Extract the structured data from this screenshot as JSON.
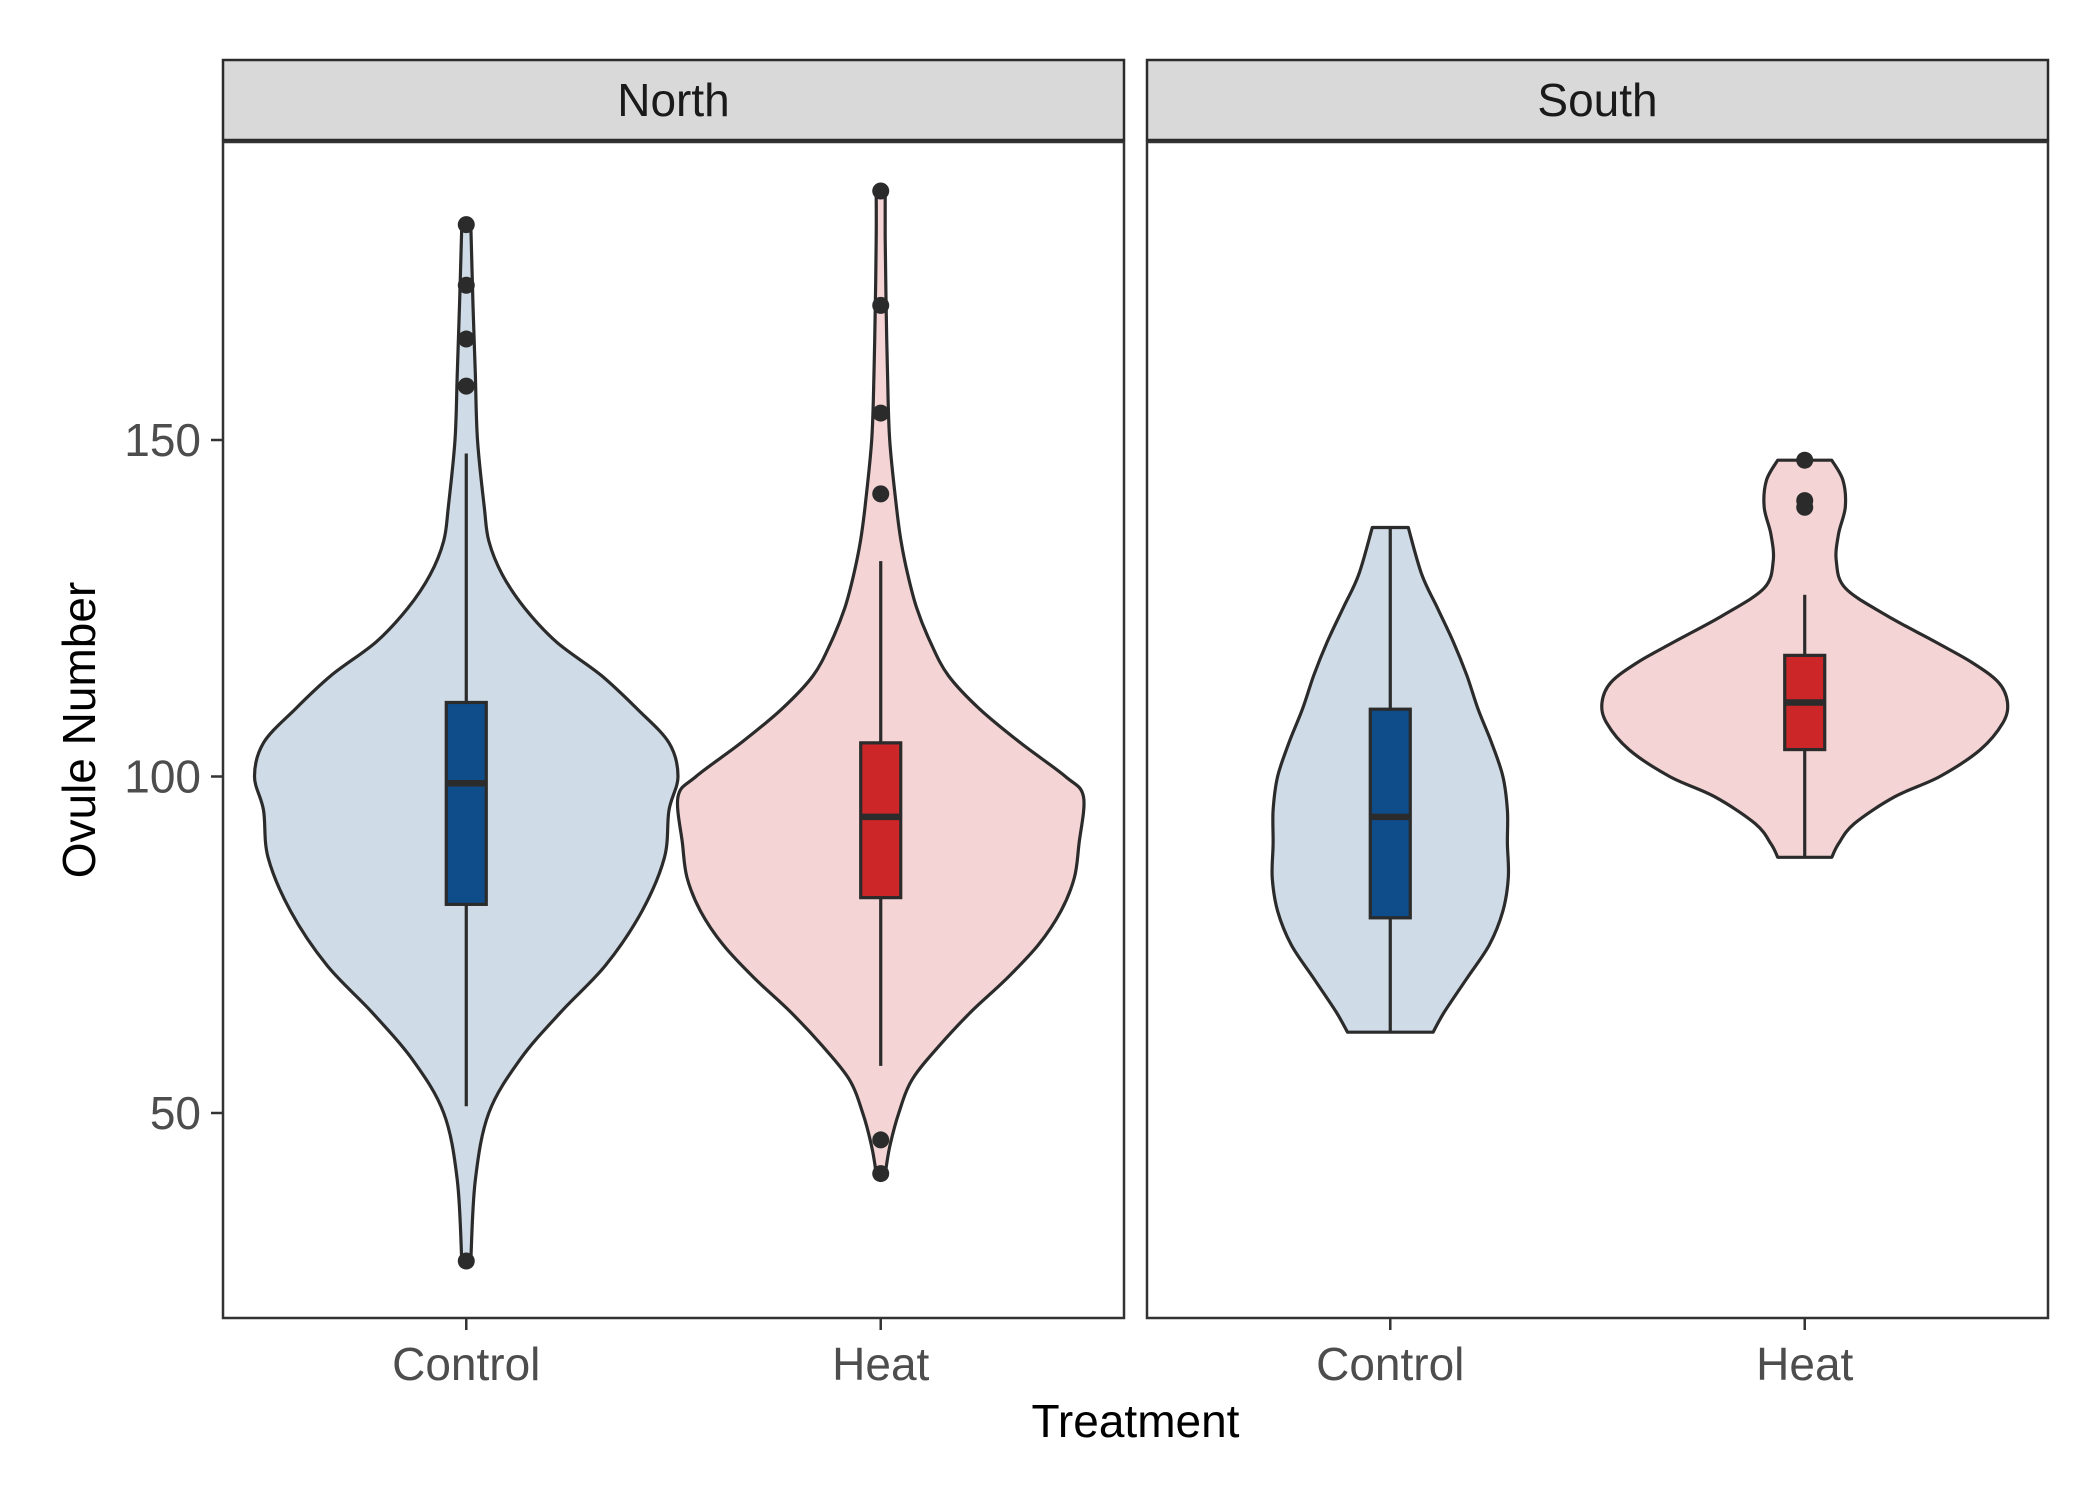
{
  "chart_data": {
    "type": "violin",
    "xlabel": "Treatment",
    "ylabel": "Ovule Number",
    "ylim": [
      20,
      190
    ],
    "yticks": [
      50,
      100,
      150
    ],
    "grid": false,
    "legend": "none",
    "categories": [
      "Control",
      "Heat"
    ],
    "colors": {
      "Control": {
        "violin_fill": "#cfdbe6",
        "box_fill": "#0f4c8a"
      },
      "Heat": {
        "violin_fill": "#f4d4d4",
        "box_fill": "#cc2629"
      },
      "outline": "#2b2b2b",
      "strip_fill": "#d9d9d9"
    },
    "facets": [
      {
        "name": "North",
        "groups": [
          {
            "treatment": "Control",
            "range": [
              28,
              182
            ],
            "box": {
              "whisker_low": 51,
              "q1": 81,
              "median": 99,
              "q3": 111,
              "whisker_high": 148
            },
            "outliers": [
              182,
              173,
              165,
              158,
              28
            ],
            "density": [
              [
                28,
                0.01
              ],
              [
                40,
                0.02
              ],
              [
                50,
                0.05
              ],
              [
                58,
                0.12
              ],
              [
                65,
                0.21
              ],
              [
                72,
                0.31
              ],
              [
                80,
                0.39
              ],
              [
                88,
                0.44
              ],
              [
                95,
                0.45
              ],
              [
                100,
                0.47
              ],
              [
                105,
                0.45
              ],
              [
                110,
                0.38
              ],
              [
                115,
                0.3
              ],
              [
                120,
                0.2
              ],
              [
                125,
                0.13
              ],
              [
                130,
                0.08
              ],
              [
                135,
                0.05
              ],
              [
                140,
                0.04
              ],
              [
                150,
                0.025
              ],
              [
                160,
                0.02
              ],
              [
                170,
                0.015
              ],
              [
                182,
                0.01
              ]
            ]
          },
          {
            "treatment": "Heat",
            "range": [
              41,
              187
            ],
            "box": {
              "whisker_low": 57,
              "q1": 82,
              "median": 94,
              "q3": 105,
              "whisker_high": 132
            },
            "outliers": [
              187,
              170,
              154,
              142,
              46,
              41
            ],
            "density": [
              [
                41,
                0.01
              ],
              [
                45,
                0.02
              ],
              [
                50,
                0.04
              ],
              [
                55,
                0.07
              ],
              [
                60,
                0.13
              ],
              [
                65,
                0.2
              ],
              [
                70,
                0.28
              ],
              [
                75,
                0.35
              ],
              [
                80,
                0.4
              ],
              [
                85,
                0.43
              ],
              [
                90,
                0.44
              ],
              [
                97,
                0.45
              ],
              [
                100,
                0.41
              ],
              [
                105,
                0.31
              ],
              [
                110,
                0.22
              ],
              [
                115,
                0.15
              ],
              [
                120,
                0.11
              ],
              [
                125,
                0.08
              ],
              [
                130,
                0.06
              ],
              [
                135,
                0.045
              ],
              [
                140,
                0.035
              ],
              [
                150,
                0.02
              ],
              [
                160,
                0.015
              ],
              [
                170,
                0.012
              ],
              [
                180,
                0.01
              ],
              [
                187,
                0.01
              ]
            ]
          }
        ]
      },
      {
        "name": "South",
        "groups": [
          {
            "treatment": "Control",
            "range": [
              62,
              137
            ],
            "box": {
              "whisker_low": 62,
              "q1": 79,
              "median": 94,
              "q3": 110,
              "whisker_high": 137
            },
            "outliers": [],
            "density": [
              [
                62,
                0.095
              ],
              [
                65,
                0.12
              ],
              [
                70,
                0.17
              ],
              [
                75,
                0.22
              ],
              [
                80,
                0.25
              ],
              [
                85,
                0.262
              ],
              [
                90,
                0.26
              ],
              [
                95,
                0.26
              ],
              [
                100,
                0.25
              ],
              [
                105,
                0.225
              ],
              [
                110,
                0.195
              ],
              [
                115,
                0.17
              ],
              [
                120,
                0.14
              ],
              [
                125,
                0.105
              ],
              [
                130,
                0.07
              ],
              [
                137,
                0.04
              ]
            ]
          },
          {
            "treatment": "Heat",
            "range": [
              88,
              147
            ],
            "box": {
              "whisker_low": 88,
              "q1": 104,
              "median": 111,
              "q3": 118,
              "whisker_high": 127
            },
            "outliers": [
              147,
              141,
              140
            ],
            "density": [
              [
                88,
                0.06
              ],
              [
                90,
                0.075
              ],
              [
                93,
                0.11
              ],
              [
                97,
                0.2
              ],
              [
                100,
                0.3
              ],
              [
                104,
                0.39
              ],
              [
                108,
                0.44
              ],
              [
                111,
                0.45
              ],
              [
                114,
                0.43
              ],
              [
                117,
                0.37
              ],
              [
                120,
                0.29
              ],
              [
                124,
                0.18
              ],
              [
                128,
                0.09
              ],
              [
                132,
                0.07
              ],
              [
                136,
                0.075
              ],
              [
                140,
                0.09
              ],
              [
                144,
                0.085
              ],
              [
                147,
                0.06
              ]
            ]
          }
        ]
      }
    ]
  }
}
